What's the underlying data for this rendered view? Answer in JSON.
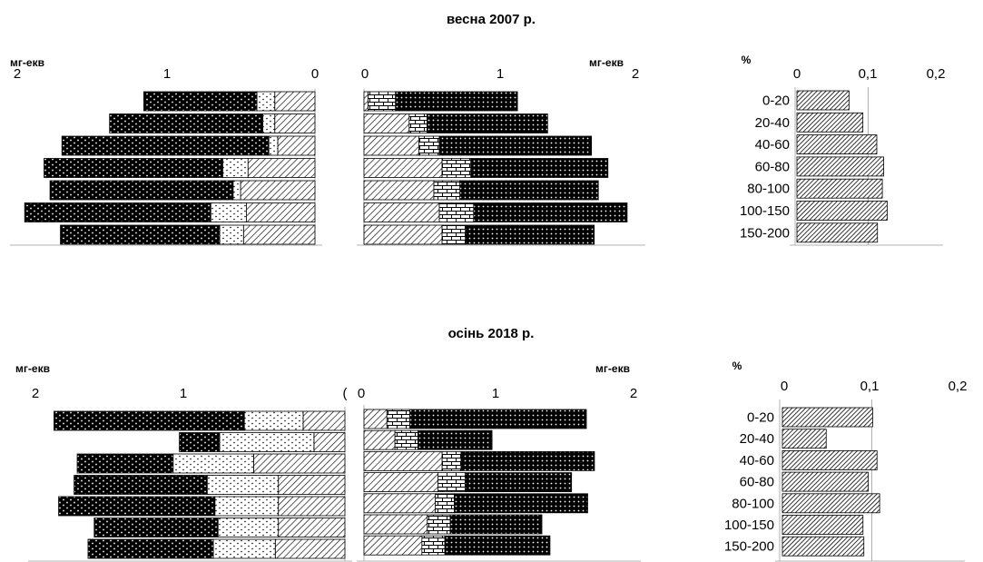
{
  "colors": {
    "ink": "#000000",
    "axis": "#b0b0b0",
    "background": "#ffffff"
  },
  "patterns": {
    "dark-dotted": "black fill with white dots",
    "light-dotted": "white fill with black dots",
    "hatched": "diagonal hatching",
    "brick": "brick pattern",
    "crosshatch": "dark cross-hatching",
    "dense-hatched": "dense diagonal hatching"
  },
  "chart_data": [
    {
      "type": "bar",
      "orientation": "horizontal",
      "stacked": true,
      "direction": "reversed",
      "title": "весна 2007 р.",
      "xlabel": "мг-екв",
      "xlim": [
        0,
        2
      ],
      "ticks": [
        "2",
        "1",
        "0"
      ],
      "categories": [
        "0-20",
        "20-40",
        "40-60",
        "60-80",
        "80-100",
        "100-150",
        "150-200"
      ],
      "series": [
        {
          "pattern": "hatched",
          "values": [
            0.27,
            0.27,
            0.25,
            0.45,
            0.5,
            0.46,
            0.48
          ]
        },
        {
          "pattern": "light-dotted",
          "values": [
            0.12,
            0.08,
            0.06,
            0.17,
            0.05,
            0.24,
            0.16
          ]
        },
        {
          "pattern": "dark-dotted",
          "values": [
            0.76,
            1.03,
            1.39,
            1.2,
            1.23,
            1.25,
            1.07
          ]
        }
      ]
    },
    {
      "type": "bar",
      "orientation": "horizontal",
      "stacked": true,
      "xlabel": "мг-екв",
      "xlim": [
        0,
        2
      ],
      "ticks": [
        "0",
        "1",
        "2"
      ],
      "categories": [
        "0-20",
        "20-40",
        "40-60",
        "60-80",
        "80-100",
        "100-150",
        "150-200"
      ],
      "series": [
        {
          "pattern": "hatched",
          "values": [
            0.03,
            0.33,
            0.4,
            0.57,
            0.51,
            0.55,
            0.57
          ]
        },
        {
          "pattern": "brick",
          "values": [
            0.2,
            0.13,
            0.15,
            0.21,
            0.19,
            0.25,
            0.17
          ]
        },
        {
          "pattern": "crosshatch",
          "values": [
            0.89,
            0.88,
            1.11,
            1.0,
            1.01,
            1.12,
            0.94
          ]
        }
      ]
    },
    {
      "type": "bar",
      "orientation": "horizontal",
      "xlabel": "%",
      "xlim": [
        0,
        0.2
      ],
      "ticks": [
        "0",
        "0,1",
        "0,2"
      ],
      "categories": [
        "0-20",
        "20-40",
        "40-60",
        "60-80",
        "80-100",
        "100-150",
        "150-200"
      ],
      "series": [
        {
          "pattern": "dense-hatched",
          "values": [
            0.075,
            0.095,
            0.115,
            0.125,
            0.123,
            0.13,
            0.116
          ]
        }
      ]
    },
    {
      "type": "bar",
      "orientation": "horizontal",
      "stacked": true,
      "direction": "reversed",
      "title": "осінь 2018 р.",
      "xlabel": "мг-екв",
      "xlim": [
        0,
        2
      ],
      "ticks": [
        "2",
        "1",
        "("
      ],
      "categories": [
        "0-20",
        "20-40",
        "40-60",
        "60-80",
        "80-100",
        "100-150",
        "150-200"
      ],
      "series": [
        {
          "pattern": "hatched",
          "values": [
            0.27,
            0.2,
            0.59,
            0.43,
            0.43,
            0.43,
            0.45
          ]
        },
        {
          "pattern": "light-dotted",
          "values": [
            0.38,
            0.61,
            0.52,
            0.46,
            0.41,
            0.39,
            0.4
          ]
        },
        {
          "pattern": "dark-dotted",
          "values": [
            1.23,
            0.26,
            0.62,
            0.86,
            1.01,
            0.8,
            0.81
          ]
        }
      ]
    },
    {
      "type": "bar",
      "orientation": "horizontal",
      "stacked": true,
      "xlabel": "мг-екв",
      "xlim": [
        0,
        2
      ],
      "ticks": [
        "0",
        "1",
        "2"
      ],
      "categories": [
        "0-20",
        "20-40",
        "40-60",
        "60-80",
        "80-100",
        "100-150",
        "150-200"
      ],
      "series": [
        {
          "pattern": "hatched",
          "values": [
            0.17,
            0.23,
            0.58,
            0.55,
            0.53,
            0.47,
            0.43
          ]
        },
        {
          "pattern": "brick",
          "values": [
            0.17,
            0.17,
            0.14,
            0.2,
            0.14,
            0.17,
            0.17
          ]
        },
        {
          "pattern": "crosshatch",
          "values": [
            1.31,
            0.55,
            0.99,
            0.79,
            0.99,
            0.68,
            0.78
          ]
        }
      ]
    },
    {
      "type": "bar",
      "orientation": "horizontal",
      "xlabel": "%",
      "xlim": [
        0,
        0.2
      ],
      "ticks": [
        "0",
        "0,1",
        "0,2"
      ],
      "categories": [
        "0-20",
        "20-40",
        "40-60",
        "60-80",
        "80-100",
        "100-150",
        "150-200"
      ],
      "series": [
        {
          "pattern": "dense-hatched",
          "values": [
            0.103,
            0.05,
            0.108,
            0.098,
            0.111,
            0.092,
            0.093
          ]
        }
      ]
    }
  ]
}
